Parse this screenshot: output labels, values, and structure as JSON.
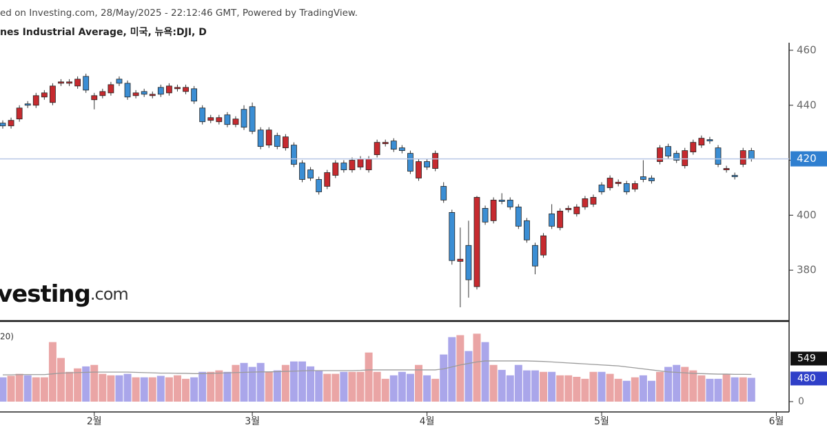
{
  "header": {
    "source": "ed on Investing.com, 28/May/2025 - 22:12:46 GMT, Powered by TradingView.",
    "symbol": "nes Industrial Average, 미국, 뉴욕:DJI, D"
  },
  "chart_data": [
    {
      "type": "candlestick",
      "categories": [
        null,
        null,
        null,
        null,
        null,
        null,
        null,
        null,
        null,
        null,
        null,
        "2월",
        null,
        null,
        null,
        null,
        null,
        null,
        null,
        null,
        null,
        null,
        null,
        null,
        null,
        null,
        null,
        null,
        null,
        null,
        "3월",
        null,
        null,
        null,
        null,
        null,
        null,
        null,
        null,
        null,
        null,
        null,
        null,
        null,
        null,
        null,
        null,
        null,
        null,
        null,
        null,
        "4월",
        null,
        null,
        null,
        null,
        null,
        null,
        null,
        null,
        null,
        null,
        null,
        null,
        null,
        null,
        null,
        null,
        null,
        null,
        null,
        null,
        "5월",
        null,
        null,
        null,
        null,
        null,
        null,
        null,
        null,
        null,
        null,
        null,
        null,
        null,
        null,
        null,
        null,
        null,
        null,
        null,
        null,
        "6월"
      ],
      "open": [
        433.5,
        432.5,
        435,
        440.5,
        440,
        443,
        441,
        448,
        448,
        447,
        450.5,
        442,
        443.5,
        444.5,
        449.5,
        448,
        443.5,
        445,
        443.5,
        446.5,
        444.5,
        446,
        445,
        446,
        439,
        434.5,
        434,
        436.5,
        433,
        438.5,
        439.5,
        431,
        425.5,
        429,
        424.5,
        425.5,
        419,
        416.5,
        413,
        410.5,
        414.5,
        419,
        416.5,
        417.5,
        416.5,
        422,
        426,
        427,
        424.5,
        422.5,
        413.5,
        419.5,
        417,
        410.5,
        401,
        383.2,
        389,
        374,
        402.5,
        398,
        405.5,
        405.5,
        403,
        398,
        389,
        385.5,
        400.5,
        395.5,
        402,
        400.5,
        403,
        404,
        411,
        410,
        411.5,
        411.5,
        409.5,
        414,
        413.5,
        419.5,
        425,
        422.5,
        418,
        423,
        425.5,
        427.5,
        424.5,
        416.5,
        414.5,
        418.5,
        423.5,
        null,
        null,
        null
      ],
      "high": [
        434.5,
        435.5,
        440,
        441.5,
        444.5,
        445.5,
        448,
        449.5,
        449.5,
        450.5,
        451.5,
        444.5,
        446,
        448.5,
        450.5,
        449,
        445.5,
        446,
        445,
        447.5,
        448,
        447.5,
        447.5,
        447,
        440,
        436.5,
        436.5,
        437.5,
        436,
        440,
        441,
        432,
        432,
        430,
        429.5,
        426.5,
        420,
        417.5,
        414,
        416.5,
        420,
        420,
        421,
        421.5,
        421.5,
        427.5,
        427.5,
        428,
        425.5,
        423.5,
        420.5,
        420.5,
        423.5,
        412,
        402,
        395.5,
        398,
        407,
        403.5,
        406.5,
        408,
        406.5,
        404,
        399,
        390,
        393.5,
        404,
        402.5,
        403.5,
        404,
        407,
        407.5,
        412,
        414.5,
        413,
        412.5,
        412.5,
        420,
        414.5,
        425.5,
        426,
        423.5,
        424.5,
        427.5,
        429,
        428.5,
        425.5,
        418,
        415.5,
        424.5,
        424.5,
        null,
        null,
        null
      ],
      "low": [
        431.5,
        431.5,
        434,
        439,
        439,
        442,
        440,
        447,
        447,
        446,
        444.5,
        438.5,
        442.5,
        443.5,
        447,
        442,
        442.5,
        443,
        442.5,
        443,
        443.5,
        445,
        444,
        440.5,
        433,
        433.5,
        433,
        432,
        432,
        431,
        429.5,
        424,
        424.5,
        424,
        423.5,
        417.5,
        412,
        412.5,
        407.5,
        409.5,
        413.5,
        415.5,
        415.5,
        416.5,
        415.5,
        421,
        425,
        423,
        422.5,
        415,
        412.5,
        416.5,
        416,
        404.5,
        382,
        366.5,
        370,
        373,
        396.5,
        397,
        404,
        402,
        395,
        390,
        378.5,
        384.5,
        395,
        394.5,
        401,
        399.5,
        402,
        403,
        407.5,
        409,
        410.5,
        407.5,
        408.5,
        412,
        411.5,
        418.5,
        420.5,
        419,
        417,
        422,
        424.5,
        426,
        417.5,
        415.5,
        413,
        417.5,
        419.5,
        null,
        null,
        null
      ],
      "close": [
        432.5,
        434.5,
        439,
        440,
        443.5,
        444.5,
        447,
        448.5,
        448.5,
        449.5,
        445.5,
        443.5,
        445,
        447.5,
        448,
        443,
        444.5,
        444,
        444,
        444,
        447,
        446.5,
        446.5,
        441.5,
        434,
        435.5,
        435.5,
        433,
        435,
        432,
        430.5,
        425,
        431,
        425,
        428.5,
        418.5,
        413,
        413.5,
        408.5,
        415.5,
        419,
        416.5,
        420,
        420.5,
        420.5,
        426.5,
        426.5,
        424,
        423.5,
        416,
        419.5,
        417.5,
        422.5,
        405.5,
        383.5,
        384,
        376.5,
        406.5,
        397.5,
        405.5,
        405,
        403,
        396,
        391,
        381.5,
        392.5,
        396,
        401.5,
        402.5,
        403,
        406,
        406.5,
        408.5,
        413.5,
        412,
        408.5,
        411.5,
        413,
        412.5,
        424.5,
        421.5,
        420,
        423.5,
        426.5,
        428,
        427,
        418.5,
        417,
        414,
        423.5,
        420.5,
        null,
        null,
        null
      ],
      "up_color": "#c62a2f",
      "down_color": "#3b8ed4",
      "last_price_label": "420",
      "last_price_color": "#2f7fd0",
      "ylim": [
        361.75,
        462.75
      ],
      "yticks": [
        380,
        400,
        420,
        440,
        460
      ],
      "logo": {
        "text": "vesting",
        "suffix": ".com"
      }
    },
    {
      "type": "bar",
      "label": "20)",
      "values": [
        490,
        520,
        560,
        530,
        490,
        490,
        1200,
        880,
        600,
        670,
        710,
        740,
        560,
        530,
        530,
        560,
        490,
        490,
        490,
        520,
        490,
        530,
        460,
        490,
        600,
        600,
        630,
        600,
        740,
        780,
        700,
        780,
        600,
        630,
        740,
        810,
        810,
        710,
        630,
        560,
        560,
        600,
        600,
        600,
        990,
        600,
        460,
        530,
        600,
        560,
        740,
        530,
        460,
        950,
        1300,
        1340,
        1020,
        1370,
        1200,
        740,
        640,
        530,
        740,
        630,
        630,
        600,
        600,
        530,
        530,
        500,
        460,
        600,
        600,
        560,
        460,
        420,
        490,
        530,
        420,
        600,
        700,
        740,
        700,
        630,
        530,
        460,
        460,
        560,
        490,
        490,
        480,
        null,
        null,
        null
      ],
      "ma_values": [
        540,
        540,
        545,
        545,
        545,
        545,
        560,
        575,
        580,
        585,
        590,
        595,
        595,
        595,
        595,
        595,
        590,
        585,
        580,
        575,
        575,
        570,
        570,
        565,
        565,
        570,
        575,
        580,
        585,
        590,
        595,
        600,
        600,
        605,
        610,
        615,
        620,
        625,
        625,
        625,
        625,
        625,
        625,
        630,
        640,
        640,
        640,
        640,
        640,
        640,
        640,
        640,
        640,
        660,
        700,
        740,
        770,
        800,
        820,
        820,
        820,
        820,
        820,
        820,
        815,
        810,
        800,
        790,
        780,
        770,
        760,
        750,
        740,
        730,
        720,
        700,
        680,
        660,
        640,
        620,
        600,
        590,
        580,
        570,
        565,
        560,
        555,
        555,
        550,
        550,
        549,
        null,
        null,
        null
      ],
      "up_color": "#eaa5a5",
      "down_color": "#aaa6ea",
      "ma_color": "#9a9a9a",
      "ma_tag_color": "#111111",
      "last_tag_color": "#2f3fc8",
      "ylim": [
        0,
        1500
      ],
      "yticks": [
        0
      ]
    }
  ]
}
